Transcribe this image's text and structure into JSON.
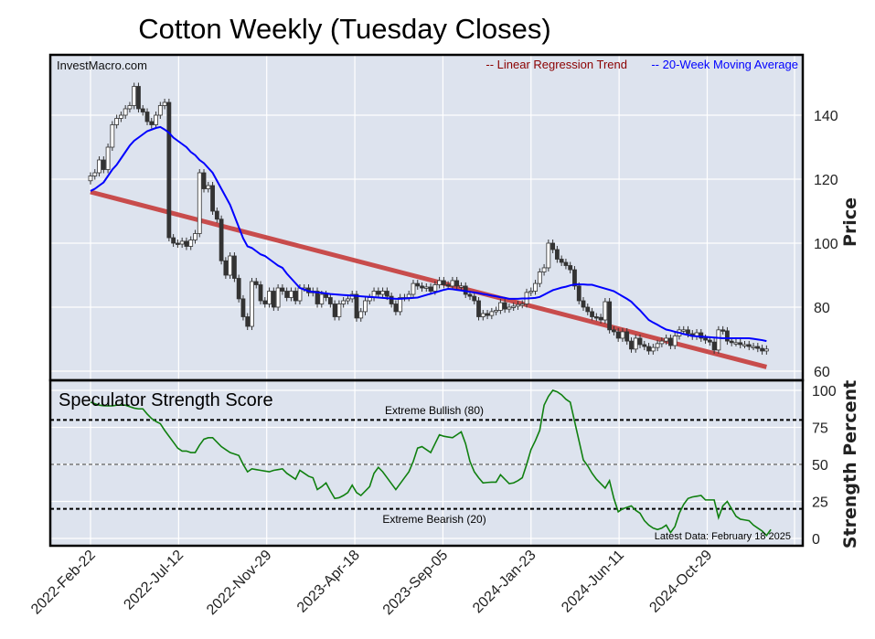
{
  "colors": {
    "panel_bg": "#dde3ee",
    "grid": "#ffffff",
    "trend": "#c84c4c",
    "trend_legend": "#8b0000",
    "ma": "#0000ff",
    "strength": "#108010",
    "candle_up": "#ffffff",
    "candle_down": "#333333"
  },
  "chart_data": [
    {
      "type": "candlestick",
      "title": "Cotton Weekly (Tuesday Closes)",
      "watermark": "InvestMacro.com",
      "ylabel": "Price",
      "ylim": [
        58,
        160
      ],
      "yticks": [
        60,
        80,
        100,
        120,
        140
      ],
      "grid": true,
      "legend_placement": "top-right",
      "legend": [
        "-- Linear Regression Trend",
        "-- 20-Week Moving Average"
      ],
      "frequency": "weekly",
      "first_date": "2022-02-22",
      "xtick_labels": [
        "2022-Feb-22",
        "2022-Jul-12",
        "2022-Nov-29",
        "2023-Apr-18",
        "2023-Sep-05",
        "2024-Jan-23",
        "2024-Jun-11",
        "2024-Oct-29"
      ],
      "closes": [
        121,
        122,
        126,
        123,
        130,
        137,
        139,
        140,
        142,
        143,
        149,
        142,
        141,
        138,
        137,
        140,
        143,
        144,
        101.7,
        100,
        99.7,
        100.6,
        99,
        101,
        103,
        122,
        117,
        118,
        110,
        107.5,
        94.5,
        90,
        96,
        89,
        82.6,
        77,
        74,
        88,
        87,
        82,
        81,
        85,
        80,
        86,
        85,
        83,
        85,
        82,
        86,
        86,
        84.5,
        85,
        81,
        84,
        83,
        81,
        77,
        81,
        82,
        82.6,
        84,
        76.6,
        78.6,
        82,
        83,
        85,
        84,
        85,
        83.4,
        81,
        78.6,
        83,
        83,
        84,
        87.4,
        86.6,
        86,
        86.3,
        85,
        87,
        88.3,
        87,
        86.6,
        88.3,
        86.6,
        86.6,
        84,
        83.4,
        82,
        77,
        78,
        77.4,
        78.6,
        79,
        81.4,
        79.4,
        80,
        80.3,
        80.8,
        81,
        84.6,
        85,
        87.4,
        91,
        92.3,
        100,
        98,
        95,
        94,
        93,
        91.7,
        86.6,
        82,
        80,
        78.6,
        77,
        76.8,
        76,
        81.7,
        72.9,
        72.3,
        70.3,
        72.3,
        69.4,
        66.9,
        70.3,
        68.3,
        67.7,
        66.3,
        67.4,
        68.6,
        69.4,
        70.3,
        68,
        71,
        72.9,
        72.9,
        71.7,
        70.9,
        72,
        70.3,
        69.7,
        69.1,
        66.6,
        72.9,
        72.6,
        69.4,
        68.9,
        68.9,
        68.3,
        68.3,
        67.7,
        67.7,
        67.1,
        66.3,
        66.9
      ],
      "moving_average_20w": [
        116.3,
        117,
        118,
        119,
        121,
        123,
        124.5,
        126.5,
        128.5,
        130.5,
        132,
        133,
        134,
        135,
        135.5,
        136,
        136.3,
        135.5,
        134.5,
        133,
        132,
        131,
        130,
        128.5,
        127.5,
        126,
        125,
        123.5,
        122,
        119.5,
        117,
        114.5,
        112,
        108.5,
        105,
        101.5,
        99,
        98.5,
        97.5,
        96.5,
        96,
        95,
        94,
        93,
        92.3,
        90.5,
        89,
        87.5,
        86,
        85.5,
        85,
        84.8,
        84.6,
        84.5,
        84.3,
        84.1,
        84,
        83.9,
        83.8,
        83.7,
        83.6,
        83.5,
        83.4,
        83.3,
        83.2,
        83.1,
        83,
        82.9,
        82.8,
        82.7,
        82.6,
        82.6,
        82.7,
        82.8,
        82.9,
        83,
        83.4,
        83.8,
        84.2,
        84.6,
        85,
        85.4,
        85.7,
        85.6,
        85.4,
        85.2,
        85,
        84.8,
        84.6,
        84.4,
        84.1,
        83.9,
        83.6,
        83.4,
        83.1,
        82.9,
        82.6,
        82.6,
        82.6,
        82.7,
        82.7,
        82.8,
        82.9,
        83.2,
        83.9,
        84.6,
        85.3,
        85.7,
        86.1,
        86.4,
        86.8,
        87.1,
        87.1,
        87.1,
        87,
        87,
        86.6,
        86.2,
        85.8,
        85.4,
        85,
        84.2,
        83.4,
        82.6,
        81.7,
        80.3,
        79,
        77.5,
        76,
        75.2,
        74.5,
        73.7,
        73,
        72.7,
        72.3,
        72,
        71.6,
        71.3,
        71,
        70.9,
        70.8,
        70.7,
        70.6,
        70.5,
        70.4,
        70.3,
        70.3,
        70.3,
        70.3,
        70.3,
        70.3,
        70.3,
        70.1,
        69.9,
        69.7,
        69.4
      ],
      "linear_regression_trend": {
        "start": 116,
        "end": 61.3
      }
    },
    {
      "type": "line",
      "title": "Speculator Strength Score",
      "ylabel": "Strength Percent",
      "ylim": [
        0,
        100
      ],
      "yticks": [
        0,
        25,
        50,
        75,
        100
      ],
      "frequency": "weekly",
      "first_date": "2022-02-22",
      "reference_lines": [
        {
          "value": 80,
          "label": "Extreme Bullish (80)"
        },
        {
          "value": 50,
          "label": ""
        },
        {
          "value": 20,
          "label": "Extreme Bearish (20)"
        }
      ],
      "annotation": "Latest Data: February 18 2025",
      "values": [
        92,
        91,
        90,
        89.6,
        89.5,
        89.5,
        90,
        90,
        90,
        89,
        88,
        87.5,
        87.5,
        84,
        81,
        79,
        77.5,
        73,
        69,
        65,
        61,
        59,
        59,
        58,
        58,
        63,
        67,
        68,
        68,
        65,
        62,
        60,
        58,
        57,
        56,
        50,
        45,
        47,
        46.5,
        46,
        45.5,
        45,
        46,
        46.5,
        47,
        44,
        42,
        40,
        46,
        44,
        42,
        41,
        33,
        35,
        37.5,
        32,
        27,
        27.5,
        29,
        31,
        36,
        31,
        29,
        32,
        35,
        44,
        48,
        45,
        41,
        37,
        33,
        37,
        41,
        45,
        52,
        61,
        62,
        60,
        58,
        64,
        70,
        69,
        68.5,
        68,
        70,
        72,
        64,
        52,
        45,
        41,
        37.5,
        37.8,
        38,
        38,
        43,
        40,
        37,
        37.5,
        39,
        41,
        50,
        60,
        66,
        73,
        90,
        96,
        100,
        99,
        97,
        94,
        92,
        79,
        66,
        53,
        49,
        44,
        40,
        37,
        34,
        39,
        27,
        18,
        20,
        21,
        22,
        19,
        17,
        12,
        9,
        7,
        6,
        7,
        9,
        4,
        8,
        17,
        23,
        27,
        28,
        28.5,
        29,
        26,
        26,
        26,
        14,
        22,
        25,
        20,
        15,
        13,
        12.5,
        12,
        9,
        7,
        5,
        2,
        6
      ]
    }
  ]
}
